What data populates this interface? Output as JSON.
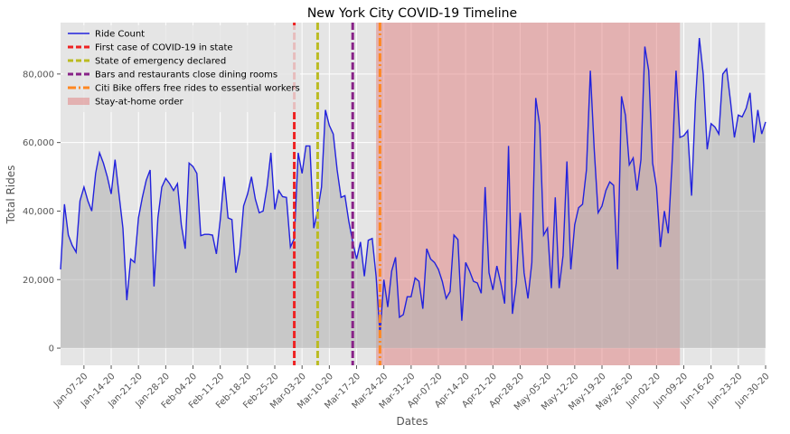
{
  "chart_data": {
    "type": "line",
    "title": "New York City COVID-19 Timeline",
    "xlabel": "Dates",
    "ylabel": "Total Rides",
    "x_start": "2020-01-01",
    "x_end": "2020-06-30",
    "ylim": [
      -5000,
      95000
    ],
    "grid": true,
    "legend_position": "top-left",
    "x_tick_labels": [
      "Jan-07-20",
      "Jan-14-20",
      "Jan-21-20",
      "Jan-28-20",
      "Feb-04-20",
      "Feb-11-20",
      "Feb-18-20",
      "Feb-25-20",
      "Mar-03-20",
      "Mar-10-20",
      "Mar-17-20",
      "Mar-24-20",
      "Mar-31-20",
      "Apr-07-20",
      "Apr-14-20",
      "Apr-21-20",
      "Apr-28-20",
      "May-05-20",
      "May-12-20",
      "May-19-20",
      "May-26-20",
      "Jun-02-20",
      "Jun-09-20",
      "Jun-16-20",
      "Jun-23-20",
      "Jun-30-20"
    ],
    "x_tick_dates": [
      "2020-01-07",
      "2020-01-14",
      "2020-01-21",
      "2020-01-28",
      "2020-02-04",
      "2020-02-11",
      "2020-02-18",
      "2020-02-25",
      "2020-03-03",
      "2020-03-10",
      "2020-03-17",
      "2020-03-24",
      "2020-03-31",
      "2020-04-07",
      "2020-04-14",
      "2020-04-21",
      "2020-04-28",
      "2020-05-05",
      "2020-05-12",
      "2020-05-19",
      "2020-05-26",
      "2020-06-02",
      "2020-06-09",
      "2020-06-16",
      "2020-06-23",
      "2020-06-30"
    ],
    "y_ticks": [
      0,
      20000,
      40000,
      60000,
      80000
    ],
    "y_tick_labels": [
      "0",
      "20,000",
      "40,000",
      "60,000",
      "80,000"
    ],
    "series": [
      {
        "name": "Ride Count",
        "color": "#2222dd",
        "values": [
          23000,
          42000,
          33000,
          30000,
          28000,
          43000,
          47000,
          43000,
          40000,
          51000,
          57000,
          54000,
          50000,
          45000,
          55000,
          45000,
          35000,
          14000,
          26000,
          25000,
          38000,
          44000,
          49000,
          52000,
          18000,
          38000,
          47000,
          49500,
          48000,
          46000,
          48000,
          36000,
          29000,
          54000,
          53000,
          51000,
          32800,
          33200,
          33200,
          33000,
          27500,
          37500,
          50000,
          38000,
          37500,
          22000,
          28000,
          41500,
          45000,
          50000,
          43500,
          39500,
          40000,
          47000,
          57000,
          40500,
          46000,
          44200,
          44000,
          29500,
          32000,
          57000,
          51000,
          59000,
          59000,
          35000,
          40000,
          47000,
          69500,
          65000,
          62500,
          52000,
          44000,
          44500,
          37000,
          31000,
          26000,
          31000,
          21000,
          31500,
          32000,
          21000,
          4000,
          20000,
          12000,
          22500,
          26500,
          9000,
          9800,
          15000,
          15000,
          20500,
          19500,
          11500,
          29000,
          26000,
          25000,
          23000,
          19500,
          14500,
          16500,
          33000,
          31700,
          8000,
          25000,
          22500,
          19500,
          19000,
          16000,
          47000,
          22000,
          17000,
          24000,
          19000,
          13000,
          59000,
          10000,
          19000,
          39500,
          22000,
          14500,
          25000,
          73000,
          65000,
          33000,
          35000,
          17500,
          44000,
          17500,
          27000,
          54500,
          23000,
          36000,
          41000,
          42000,
          52000,
          81000,
          58000,
          39500,
          41500,
          46000,
          48500,
          47500,
          23000,
          73500,
          68000,
          53500,
          55500,
          46000,
          55000,
          88000,
          81000,
          54000,
          47000,
          29500,
          40000,
          33500,
          54500,
          81000,
          61500,
          62000,
          63500,
          44500,
          72000,
          90500,
          80000,
          58000,
          65500,
          64500,
          62500,
          80000,
          81500,
          72000,
          61500,
          68000,
          67500,
          70000,
          74500,
          60000,
          69500,
          62500,
          66000
        ]
      }
    ],
    "events": [
      {
        "name": "First case of COVID-19 in state",
        "date": "2020-03-01",
        "color": "#ee2222",
        "style": "dashed"
      },
      {
        "name": "State of emergency declared",
        "date": "2020-03-07",
        "color": "#bbbb22",
        "style": "dashed"
      },
      {
        "name": "Bars and restaurants close dining rooms",
        "date": "2020-03-16",
        "color": "#882288",
        "style": "dashed"
      },
      {
        "name": "Citi Bike offers free rides to essential workers",
        "date": "2020-03-23",
        "color": "#ff8822",
        "style": "dashdot"
      }
    ],
    "shaded_region": {
      "name": "Stay-at-home order",
      "start": "2020-03-22",
      "end": "2020-06-08",
      "color": "#e27d7d"
    }
  }
}
